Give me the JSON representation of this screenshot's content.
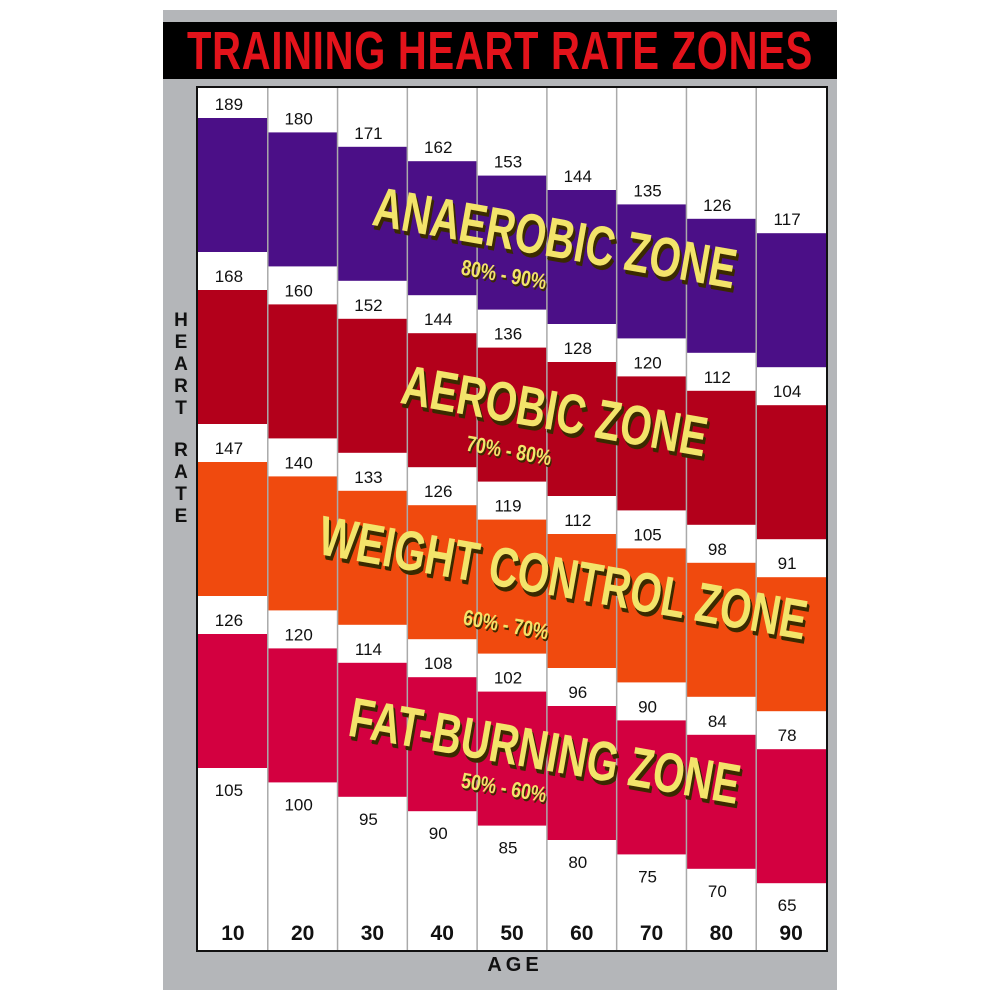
{
  "chart_data": {
    "type": "bar",
    "title": "TRAINING HEART RATE ZONES",
    "xlabel": "AGE",
    "ylabel": "HEART RATE",
    "categories": [
      "10",
      "20",
      "30",
      "40",
      "50",
      "60",
      "70",
      "80",
      "90"
    ],
    "boundaries": [
      {
        "percent": "90%",
        "values": [
          189,
          180,
          171,
          162,
          153,
          144,
          135,
          126,
          117
        ]
      },
      {
        "percent": "80%",
        "values": [
          168,
          160,
          152,
          144,
          136,
          128,
          120,
          112,
          104
        ]
      },
      {
        "percent": "70%",
        "values": [
          147,
          140,
          133,
          126,
          119,
          112,
          105,
          98,
          91
        ]
      },
      {
        "percent": "60%",
        "values": [
          126,
          120,
          114,
          108,
          102,
          96,
          90,
          84,
          78
        ]
      },
      {
        "percent": "50%",
        "values": [
          105,
          100,
          95,
          90,
          85,
          80,
          75,
          70,
          65
        ]
      }
    ],
    "zones": [
      {
        "name": "ANAEROBIC ZONE",
        "range": "80% - 90%",
        "color": "#4b0f87"
      },
      {
        "name": "AEROBIC ZONE",
        "range": "70% - 80%",
        "color": "#b3001b"
      },
      {
        "name": "WEIGHT CONTROL ZONE",
        "range": "60% - 70%",
        "color": "#f04a0e"
      },
      {
        "name": "FAT-BURNING ZONE",
        "range": "50% - 60%",
        "color": "#d30040"
      }
    ],
    "text_color": "#f3e46a",
    "title_color": "#e3131b"
  }
}
